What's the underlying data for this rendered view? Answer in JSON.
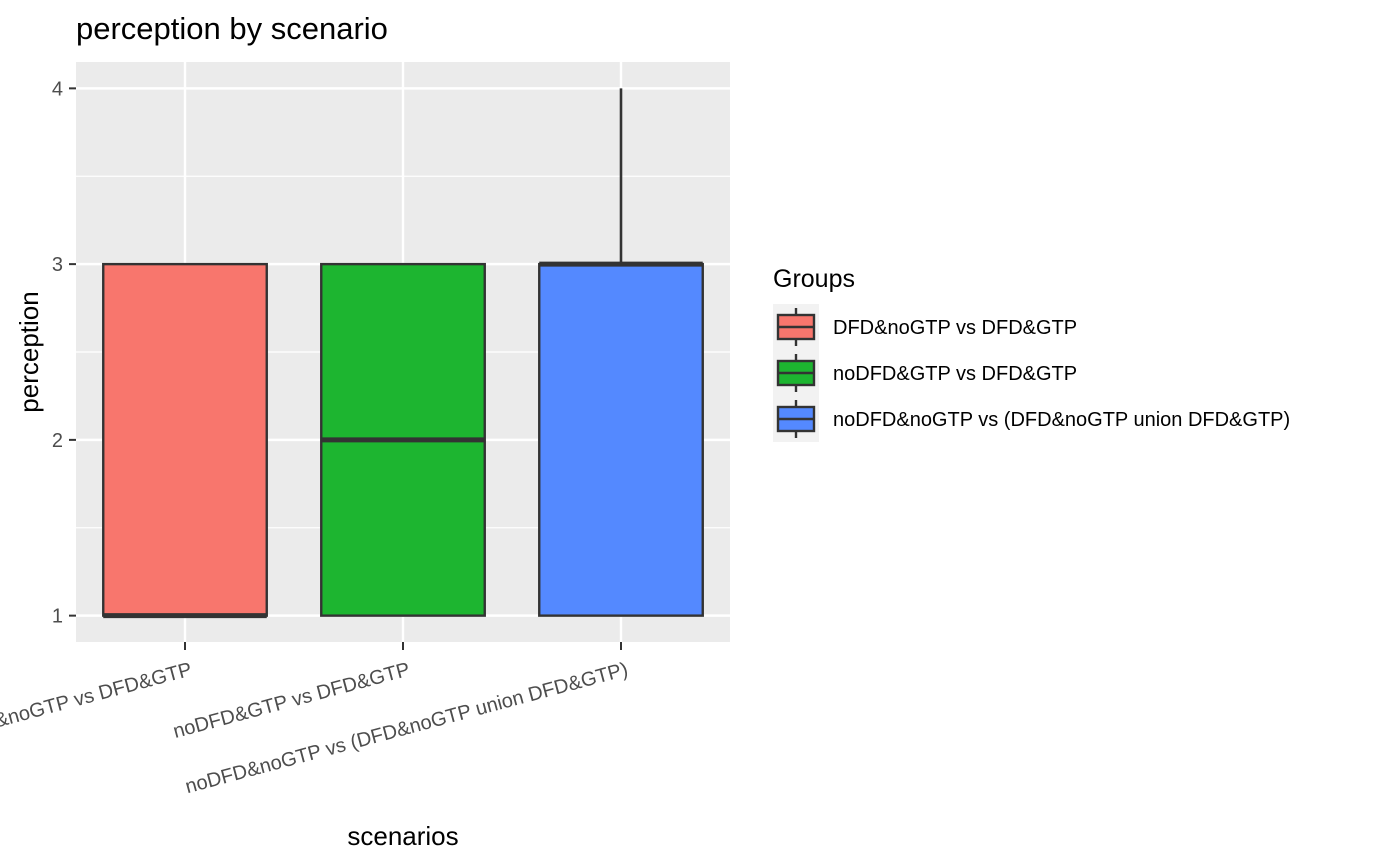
{
  "chart_data": {
    "type": "boxplot",
    "title": "perception by scenario",
    "xlabel": "scenarios",
    "ylabel": "perception",
    "ylim": [
      0.85,
      4.15
    ],
    "yticks": [
      1,
      2,
      3,
      4
    ],
    "grid": true,
    "legend": {
      "title": "Groups",
      "position": "right"
    },
    "categories": [
      "DFD&noGTP vs DFD&GTP",
      "noDFD&GTP vs DFD&GTP",
      "noDFD&noGTP vs (DFD&noGTP union DFD&GTP)"
    ],
    "boxes": [
      {
        "name": "DFD&noGTP vs DFD&GTP",
        "color": "#F8766D",
        "min": 1,
        "q1": 1,
        "median": 1,
        "q3": 3,
        "max": 3
      },
      {
        "name": "noDFD&GTP vs DFD&GTP",
        "color": "#1DB530",
        "min": 1,
        "q1": 1,
        "median": 2,
        "q3": 3,
        "max": 3
      },
      {
        "name": "noDFD&noGTP vs (DFD&noGTP union DFD&GTP)",
        "color": "#5489FF",
        "min": 1,
        "q1": 1,
        "median": 3,
        "q3": 3,
        "max": 4
      }
    ]
  }
}
